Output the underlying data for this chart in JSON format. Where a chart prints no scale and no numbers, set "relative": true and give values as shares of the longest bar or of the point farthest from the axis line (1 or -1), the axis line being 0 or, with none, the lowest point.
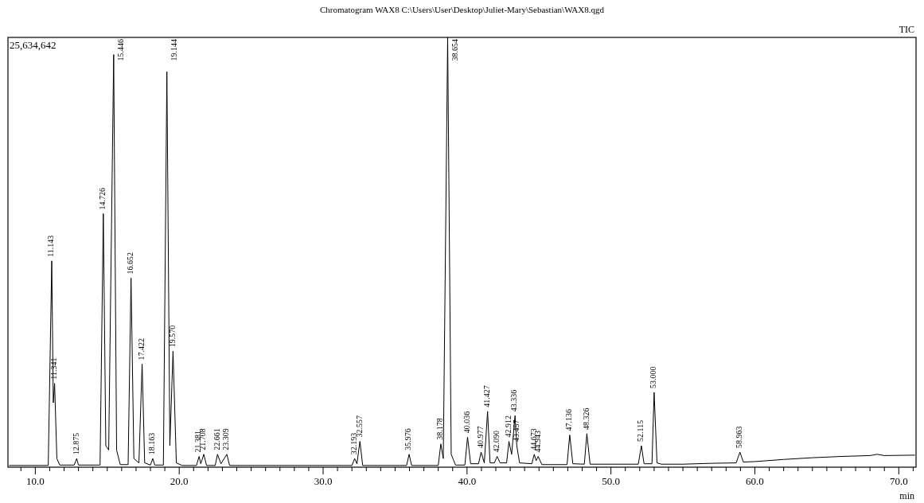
{
  "chart_data": {
    "type": "line",
    "title": "Chromatogram WAX8 C:\\Users\\User\\Desktop\\Juliet-Mary\\Sebastian\\WAX8.qgd",
    "xlabel": "min",
    "relative": true,
    "xlim": [
      8.1,
      71.2
    ],
    "xticks": [
      {
        "value": 9,
        "label": null
      },
      {
        "value": 10,
        "label": "10.0"
      },
      {
        "value": 11,
        "label": null
      },
      {
        "value": 12,
        "label": null
      },
      {
        "value": 13,
        "label": null
      },
      {
        "value": 14,
        "label": null
      },
      {
        "value": 15,
        "label": null
      },
      {
        "value": 16,
        "label": null
      },
      {
        "value": 17,
        "label": null
      },
      {
        "value": 18,
        "label": null
      },
      {
        "value": 19,
        "label": null
      },
      {
        "value": 20,
        "label": "20.0"
      },
      {
        "value": 21,
        "label": null
      },
      {
        "value": 22,
        "label": null
      },
      {
        "value": 23,
        "label": null
      },
      {
        "value": 24,
        "label": null
      },
      {
        "value": 25,
        "label": null
      },
      {
        "value": 26,
        "label": null
      },
      {
        "value": 27,
        "label": null
      },
      {
        "value": 28,
        "label": null
      },
      {
        "value": 29,
        "label": null
      },
      {
        "value": 30,
        "label": "30.0"
      },
      {
        "value": 31,
        "label": null
      },
      {
        "value": 32,
        "label": null
      },
      {
        "value": 33,
        "label": null
      },
      {
        "value": 34,
        "label": null
      },
      {
        "value": 35,
        "label": null
      },
      {
        "value": 36,
        "label": null
      },
      {
        "value": 37,
        "label": null
      },
      {
        "value": 38,
        "label": null
      },
      {
        "value": 39,
        "label": null
      },
      {
        "value": 40,
        "label": "40.0"
      },
      {
        "value": 41,
        "label": null
      },
      {
        "value": 42,
        "label": null
      },
      {
        "value": 43,
        "label": null
      },
      {
        "value": 44,
        "label": null
      },
      {
        "value": 45,
        "label": null
      },
      {
        "value": 46,
        "label": null
      },
      {
        "value": 47,
        "label": null
      },
      {
        "value": 48,
        "label": null
      },
      {
        "value": 49,
        "label": null
      },
      {
        "value": 50,
        "label": "50.0"
      },
      {
        "value": 51,
        "label": null
      },
      {
        "value": 52,
        "label": null
      },
      {
        "value": 53,
        "label": null
      },
      {
        "value": 54,
        "label": null
      },
      {
        "value": 55,
        "label": null
      },
      {
        "value": 56,
        "label": null
      },
      {
        "value": 57,
        "label": null
      },
      {
        "value": 58,
        "label": null
      },
      {
        "value": 59,
        "label": null
      },
      {
        "value": 60,
        "label": "60.0"
      },
      {
        "value": 61,
        "label": null
      },
      {
        "value": 62,
        "label": null
      },
      {
        "value": 63,
        "label": null
      },
      {
        "value": 64,
        "label": null
      },
      {
        "value": 65,
        "label": null
      },
      {
        "value": 66,
        "label": null
      },
      {
        "value": 67,
        "label": null
      },
      {
        "value": 68,
        "label": null
      },
      {
        "value": 69,
        "label": null
      },
      {
        "value": 70,
        "label": "70.0"
      },
      {
        "value": 71,
        "label": null
      }
    ],
    "series": [
      {
        "name": "TIC",
        "color": "#000000",
        "x": [
          8.2,
          10.9,
          11.143,
          11.25,
          11.341,
          11.5,
          11.7,
          12.7,
          12.875,
          13.0,
          14.5,
          14.726,
          14.9,
          15.1,
          15.446,
          15.65,
          15.9,
          16.45,
          16.652,
          16.85,
          17.2,
          17.422,
          17.6,
          18.0,
          18.163,
          18.3,
          18.9,
          19.144,
          19.35,
          19.57,
          19.8,
          20.2,
          21.2,
          21.381,
          21.5,
          21.708,
          21.9,
          22.5,
          22.661,
          22.9,
          23.309,
          23.5,
          32.0,
          32.193,
          32.35,
          32.557,
          32.75,
          35.8,
          35.976,
          36.15,
          38.0,
          38.178,
          38.35,
          38.654,
          38.9,
          39.2,
          39.85,
          40.036,
          40.25,
          40.8,
          40.977,
          41.2,
          41.427,
          41.6,
          41.9,
          42.09,
          42.3,
          42.75,
          42.912,
          43.1,
          43.336,
          43.457,
          43.65,
          44.5,
          44.673,
          44.8,
          44.943,
          45.2,
          46.95,
          47.136,
          47.35,
          48.15,
          48.326,
          48.55,
          51.9,
          52.115,
          52.3,
          52.85,
          53.0,
          53.2,
          53.5,
          55,
          57,
          58.7,
          58.963,
          59.2,
          60,
          62,
          64,
          66,
          68,
          68.5,
          69,
          71.1
        ],
        "values": [
          0.004,
          0.004,
          0.48,
          0.15,
          0.195,
          0.02,
          0.005,
          0.005,
          0.02,
          0.005,
          0.005,
          0.59,
          0.05,
          0.04,
          0.96,
          0.04,
          0.006,
          0.006,
          0.44,
          0.02,
          0.01,
          0.24,
          0.01,
          0.005,
          0.02,
          0.005,
          0.005,
          0.92,
          0.05,
          0.27,
          0.01,
          0.004,
          0.004,
          0.025,
          0.008,
          0.03,
          0.004,
          0.004,
          0.03,
          0.008,
          0.03,
          0.004,
          0.004,
          0.02,
          0.008,
          0.06,
          0.004,
          0.004,
          0.03,
          0.004,
          0.004,
          0.054,
          0.02,
          1,
          0.03,
          0.005,
          0.005,
          0.07,
          0.008,
          0.008,
          0.035,
          0.01,
          0.13,
          0.01,
          0.01,
          0.025,
          0.01,
          0.01,
          0.06,
          0.03,
          0.12,
          0.05,
          0.01,
          0.008,
          0.03,
          0.015,
          0.025,
          0.006,
          0.006,
          0.075,
          0.008,
          0.007,
          0.078,
          0.007,
          0.007,
          0.05,
          0.008,
          0.008,
          0.174,
          0.01,
          0.007,
          0.007,
          0.009,
          0.01,
          0.035,
          0.012,
          0.013,
          0.018,
          0.022,
          0.025,
          0.027,
          0.03,
          0.027,
          0.028
        ]
      }
    ],
    "annotations": [
      "25,634,642",
      {
        "text": "11.143",
        "x": 11.143,
        "y": 0.48
      },
      {
        "text": "11.341",
        "x": 11.341,
        "y": 0.195
      },
      {
        "text": "12.875",
        "x": 12.875,
        "y": 0.02
      },
      {
        "text": "14.726",
        "x": 14.726,
        "y": 0.59
      },
      {
        "text": "15.446",
        "x": 15.446,
        "y": 0.96
      },
      {
        "text": "16.652",
        "x": 16.652,
        "y": 0.44
      },
      {
        "text": "17.422",
        "x": 17.422,
        "y": 0.24
      },
      {
        "text": "18.163",
        "x": 18.163,
        "y": 0.02
      },
      {
        "text": "19.144",
        "x": 19.144,
        "y": 0.92
      },
      {
        "text": "19.570",
        "x": 19.57,
        "y": 0.27
      },
      {
        "text": "21.381",
        "x": 21.381,
        "y": 0.025
      },
      {
        "text": "21.708",
        "x": 21.708,
        "y": 0.03
      },
      {
        "text": "22.661",
        "x": 22.661,
        "y": 0.03
      },
      {
        "text": "23.309",
        "x": 23.309,
        "y": 0.03
      },
      {
        "text": "32.193",
        "x": 32.193,
        "y": 0.02
      },
      {
        "text": "32.557",
        "x": 32.557,
        "y": 0.06
      },
      {
        "text": "35.976",
        "x": 35.976,
        "y": 0.03
      },
      {
        "text": "38.178",
        "x": 38.178,
        "y": 0.054
      },
      {
        "text": "38.654",
        "x": 38.654,
        "y": 1
      },
      {
        "text": "40.036",
        "x": 40.036,
        "y": 0.07
      },
      {
        "text": "40.977",
        "x": 40.977,
        "y": 0.035
      },
      {
        "text": "41.427",
        "x": 41.427,
        "y": 0.13
      },
      {
        "text": "42.090",
        "x": 42.09,
        "y": 0.025
      },
      {
        "text": "42.912",
        "x": 42.912,
        "y": 0.06
      },
      {
        "text": "43.336",
        "x": 43.336,
        "y": 0.12
      },
      {
        "text": "43.457",
        "x": 43.457,
        "y": 0.05
      },
      {
        "text": "44.673",
        "x": 44.673,
        "y": 0.03
      },
      {
        "text": "44.943",
        "x": 44.943,
        "y": 0.025
      },
      {
        "text": "47.136",
        "x": 47.136,
        "y": 0.075
      },
      {
        "text": "48.326",
        "x": 48.326,
        "y": 0.078
      },
      {
        "text": "52.115",
        "x": 52.115,
        "y": 0.05
      },
      {
        "text": "53.000",
        "x": 53.0,
        "y": 0.174
      },
      {
        "text": "58.963",
        "x": 58.963,
        "y": 0.035
      }
    ]
  }
}
